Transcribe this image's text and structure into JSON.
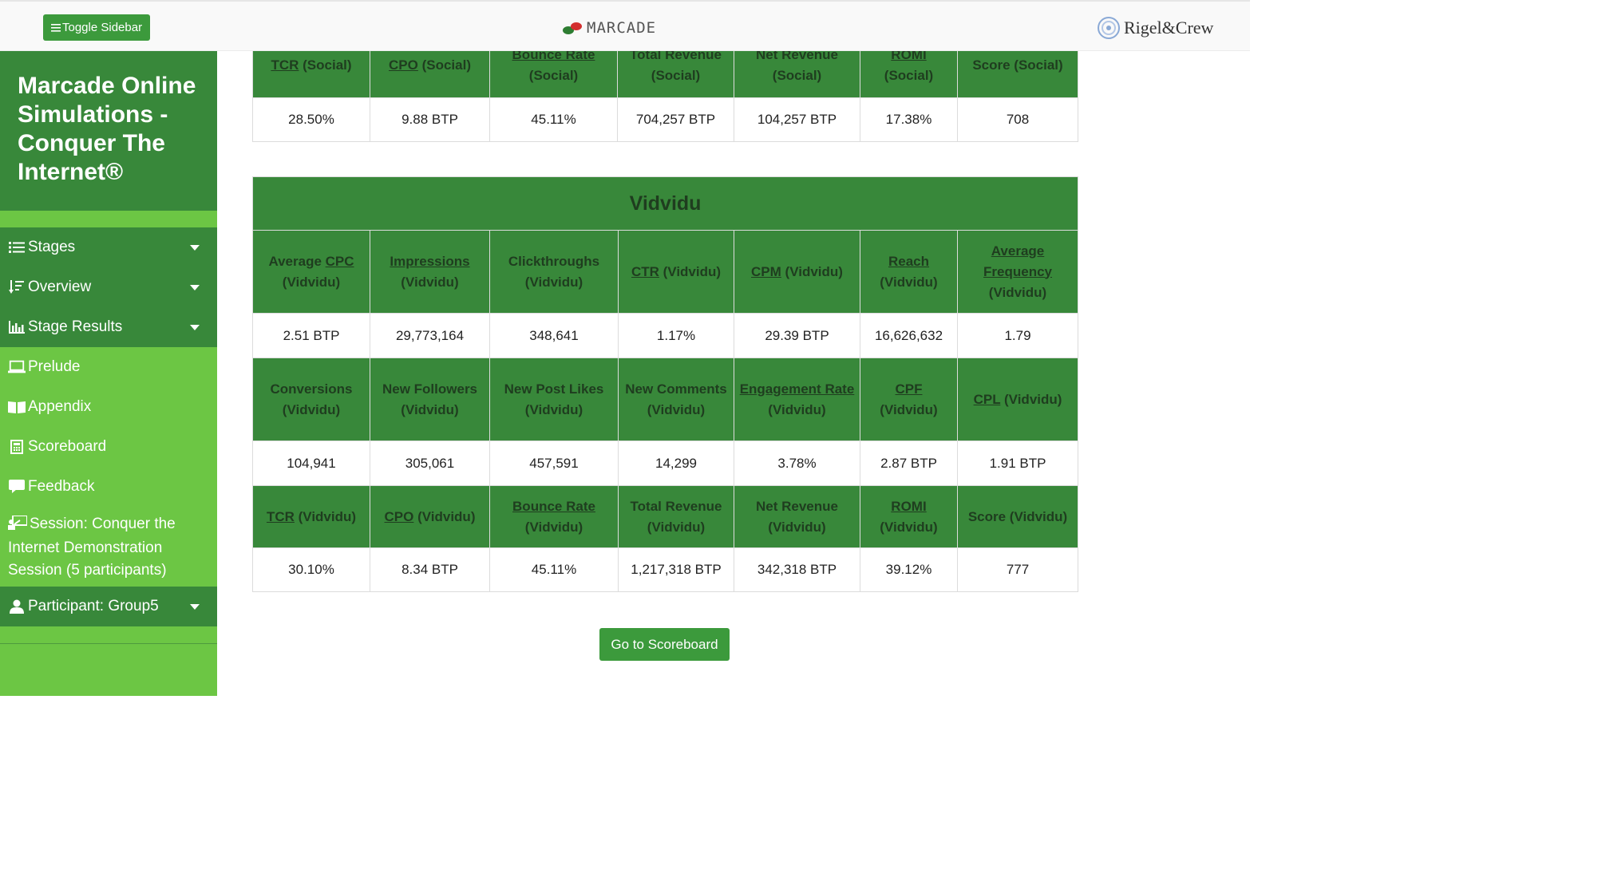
{
  "header": {
    "toggle_label": "Toggle Sidebar",
    "logo_text": "MARCADE",
    "brand_text": "Rigel&Crew",
    "colors": {
      "accent": "#3c9a3c",
      "dark_green": "#38883a",
      "light_green": "#6cc644"
    }
  },
  "sidebar": {
    "title": "Marcade Online Simulations - Conquer The Internet®",
    "menu": [
      {
        "label": "Stages",
        "icon": "list-icon",
        "dropdown": true
      },
      {
        "label": "Overview",
        "icon": "sort-icon",
        "dropdown": true
      },
      {
        "label": "Stage Results",
        "icon": "bar-chart-icon",
        "dropdown": true
      }
    ],
    "links": [
      {
        "label": "Prelude",
        "icon": "laptop-icon"
      },
      {
        "label": "Appendix",
        "icon": "book-icon"
      },
      {
        "label": "Scoreboard",
        "icon": "calculator-icon"
      },
      {
        "label": "Feedback",
        "icon": "comment-icon"
      }
    ],
    "session": "Session: Conquer the Internet Demonstration Session (5 participants)",
    "participant": "Participant: Group5"
  },
  "social_table": {
    "headers": [
      {
        "u": "TCR",
        "rest": " (Social)"
      },
      {
        "u": "CPO",
        "rest": " (Social)"
      },
      {
        "u": "Bounce Rate",
        "rest": " (Social)"
      },
      {
        "u": "",
        "rest": "Total Revenue (Social)"
      },
      {
        "u": "",
        "rest": "Net Revenue (Social)"
      },
      {
        "u": "ROMI",
        "rest": " (Social)"
      },
      {
        "u": "",
        "rest": "Score (Social)"
      }
    ],
    "values": [
      "28.50%",
      "9.88 BTP",
      "45.11%",
      "704,257 BTP",
      "104,257 BTP",
      "17.38%",
      "708"
    ]
  },
  "vidvidu_table": {
    "title": "Vidvidu",
    "row1_headers": [
      {
        "pre": "Average ",
        "u": "CPC",
        "rest": " (Vidvidu)"
      },
      {
        "pre": "",
        "u": "Impressions",
        "rest": " (Vidvidu)"
      },
      {
        "pre": "",
        "u": "",
        "rest": "Clickthroughs (Vidvidu)"
      },
      {
        "pre": "",
        "u": "CTR",
        "rest": " (Vidvidu)"
      },
      {
        "pre": "",
        "u": "CPM",
        "rest": " (Vidvidu)"
      },
      {
        "pre": "",
        "u": "Reach",
        "rest": " (Vidvidu)"
      },
      {
        "pre": "",
        "u": "Average Frequency",
        "rest": " (Vidvidu)"
      }
    ],
    "row1_values": [
      "2.51 BTP",
      "29,773,164",
      "348,641",
      "1.17%",
      "29.39 BTP",
      "16,626,632",
      "1.79"
    ],
    "row2_headers": [
      {
        "pre": "",
        "u": "",
        "rest": "Conversions (Vidvidu)"
      },
      {
        "pre": "",
        "u": "",
        "rest": "New Followers (Vidvidu)"
      },
      {
        "pre": "",
        "u": "",
        "rest": "New Post Likes (Vidvidu)"
      },
      {
        "pre": "",
        "u": "",
        "rest": "New Comments (Vidvidu)"
      },
      {
        "pre": "",
        "u": "Engagement Rate",
        "rest": " (Vidvidu)"
      },
      {
        "pre": "",
        "u": "CPF",
        "rest": " (Vidvidu)"
      },
      {
        "pre": "",
        "u": "CPL",
        "rest": " (Vidvidu)"
      }
    ],
    "row2_values": [
      "104,941",
      "305,061",
      "457,591",
      "14,299",
      "3.78%",
      "2.87 BTP",
      "1.91 BTP"
    ],
    "row3_headers": [
      {
        "pre": "",
        "u": "TCR",
        "rest": " (Vidvidu)"
      },
      {
        "pre": "",
        "u": "CPO",
        "rest": " (Vidvidu)"
      },
      {
        "pre": "",
        "u": "Bounce Rate",
        "rest": " (Vidvidu)"
      },
      {
        "pre": "",
        "u": "",
        "rest": "Total Revenue (Vidvidu)"
      },
      {
        "pre": "",
        "u": "",
        "rest": "Net Revenue (Vidvidu)"
      },
      {
        "pre": "",
        "u": "ROMI",
        "rest": " (Vidvidu)"
      },
      {
        "pre": "",
        "u": "",
        "rest": "Score (Vidvidu)"
      }
    ],
    "row3_values": [
      "30.10%",
      "8.34 BTP",
      "45.11%",
      "1,217,318 BTP",
      "342,318 BTP",
      "39.12%",
      "777"
    ]
  },
  "go_button_label": "Go to Scoreboard"
}
